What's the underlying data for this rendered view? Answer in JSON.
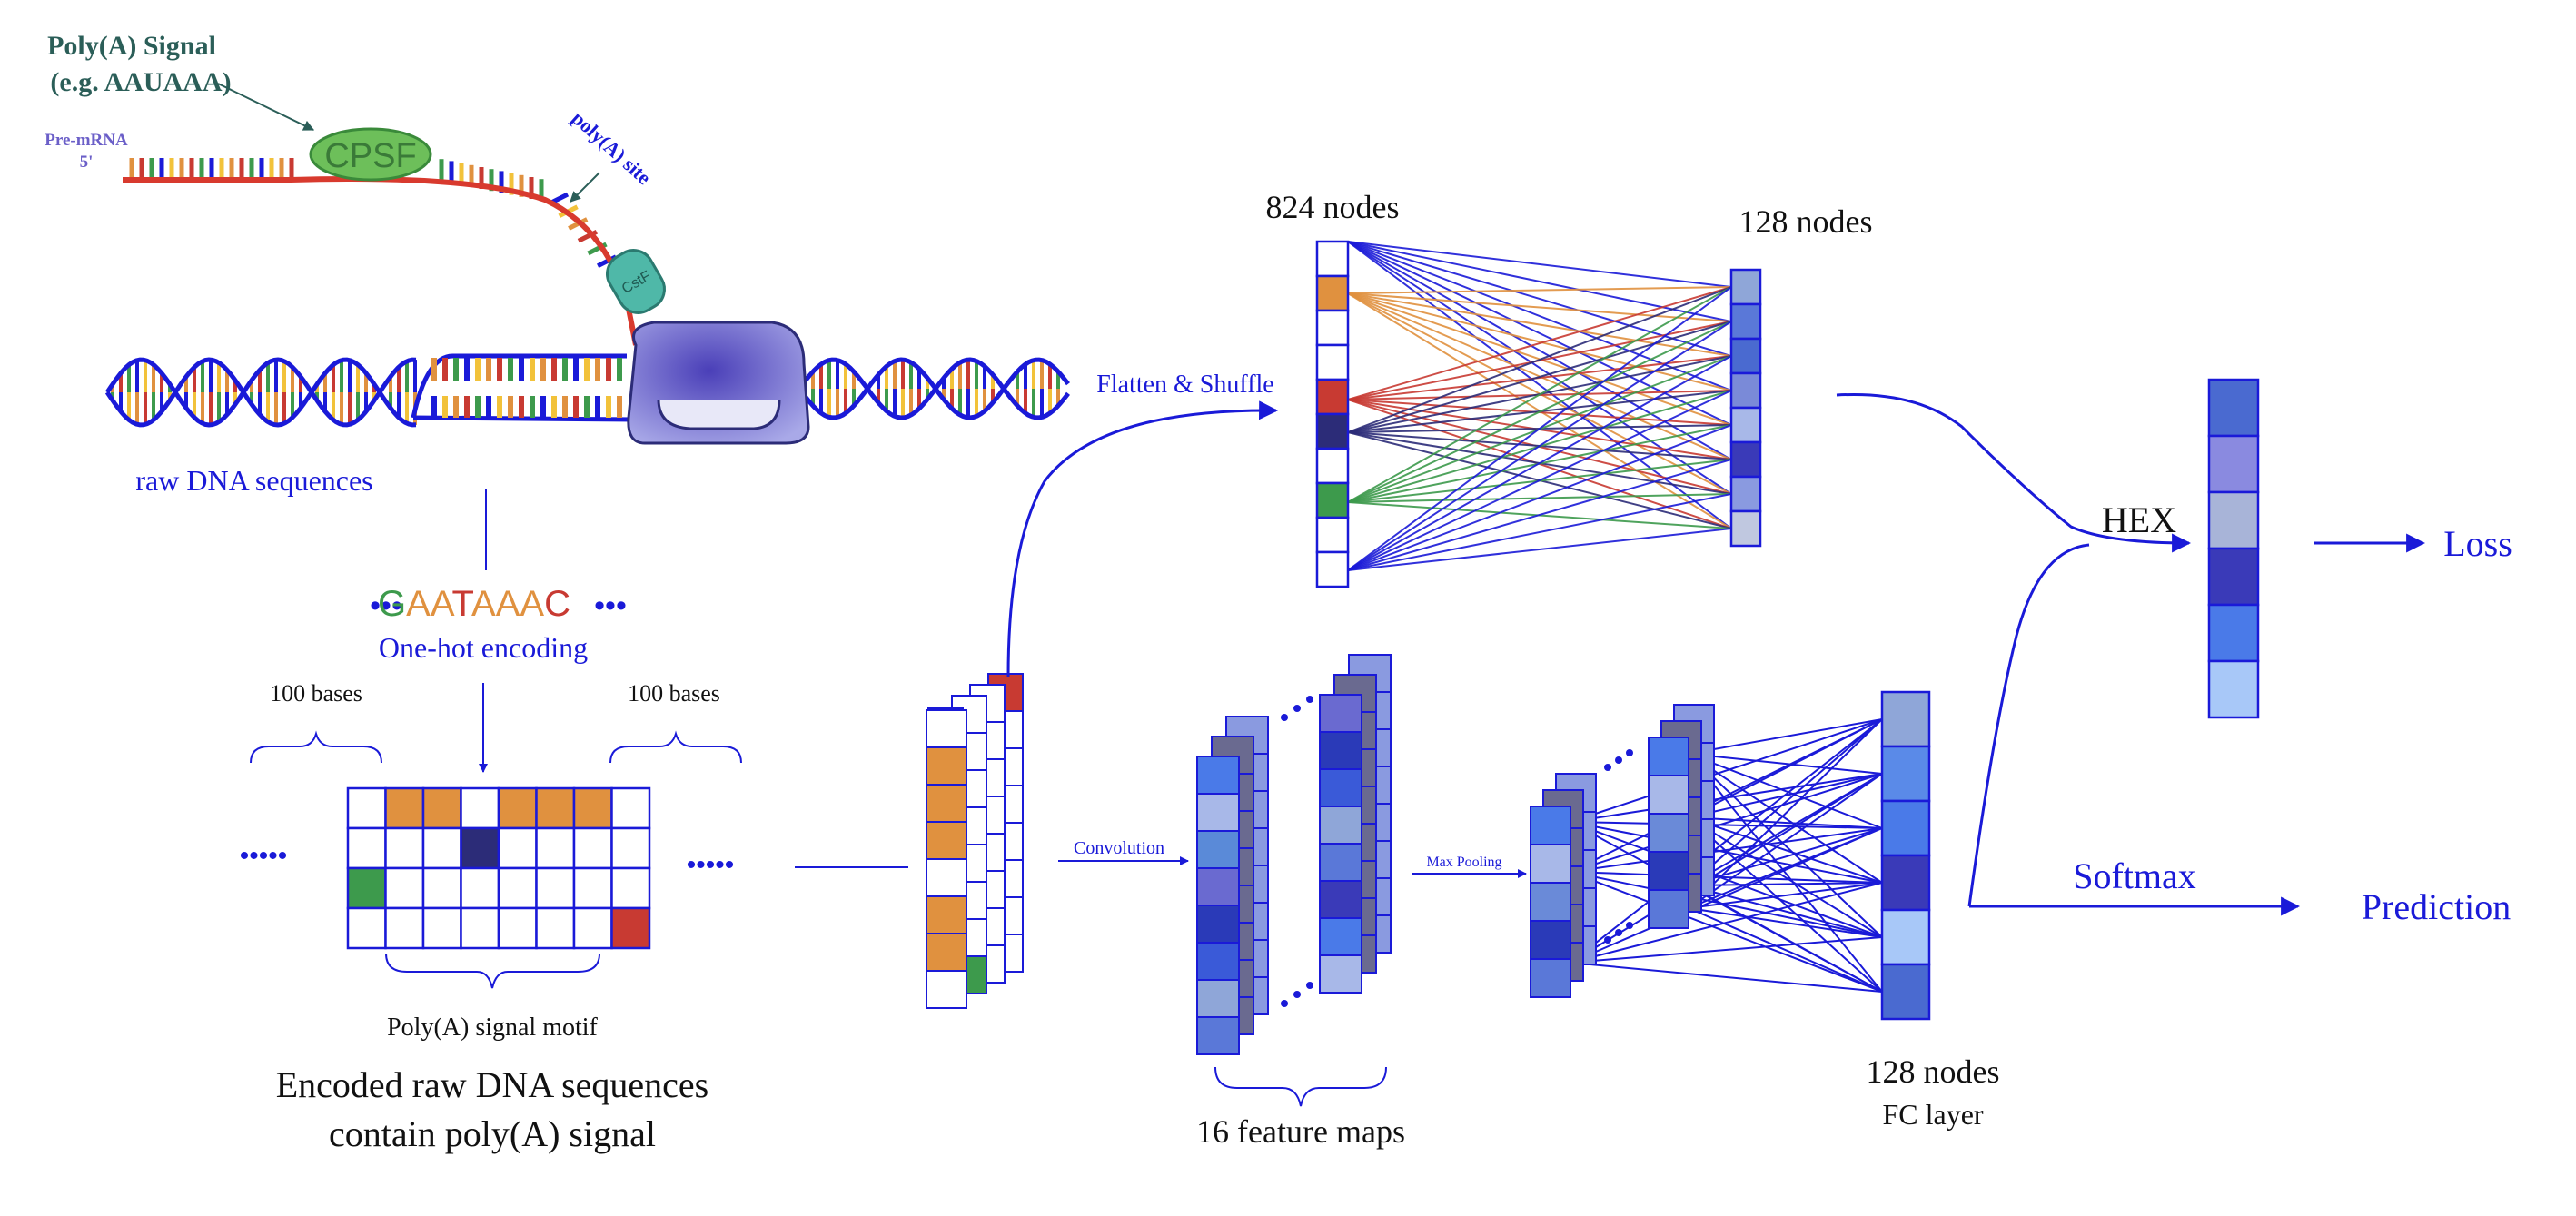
{
  "colors": {
    "blue": "#1a1ad8",
    "dark_teal": "#2b5e58",
    "orange": "#e0913f",
    "red": "#c83a32",
    "green": "#3d9a4c",
    "navy": "#2c2c78",
    "cpsf_green": "#6dbf5a",
    "cstf_teal": "#4fb8a8",
    "pol_purple": "#6b6bd0"
  },
  "bio": {
    "polya_signal_line1": "Poly(A) Signal",
    "polya_signal_line2": "(e.g. AAUAAA)",
    "pre_mrna": "Pre-mRNA",
    "five_prime": "5'",
    "cpsf": "CPSF",
    "cstf": "CstF",
    "polya_site": "poly(A) site",
    "raw_dna": "raw DNA sequences"
  },
  "encoding": {
    "dots": "•••",
    "seq_letters": [
      {
        "ch": "G",
        "color": "#3d9a4c"
      },
      {
        "ch": "A",
        "color": "#e0913f"
      },
      {
        "ch": "A",
        "color": "#e0913f"
      },
      {
        "ch": "T",
        "color": "#c83a32"
      },
      {
        "ch": "A",
        "color": "#e0913f"
      },
      {
        "ch": "A",
        "color": "#e0913f"
      },
      {
        "ch": "A",
        "color": "#e0913f"
      },
      {
        "ch": "C",
        "color": "#c83a32"
      }
    ],
    "one_hot": "One-hot encoding",
    "left_bases": "100 bases",
    "right_bases": "100 bases",
    "ellipsis": "•••••",
    "motif": "Poly(A) signal motif",
    "caption_line1": "Encoded raw DNA sequences",
    "caption_line2": "contain poly(A) signal"
  },
  "network": {
    "flatten": "Flatten & Shuffle",
    "nodes_824": "824 nodes",
    "nodes_128_top": "128 nodes",
    "convolution": "Convolution",
    "max_pooling": "Max Pooling",
    "feature_maps": "16 feature maps",
    "nodes_128_fc": "128 nodes",
    "fc_layer": "FC layer",
    "hex": "HEX",
    "loss": "Loss",
    "softmax": "Softmax",
    "prediction": "Prediction"
  }
}
